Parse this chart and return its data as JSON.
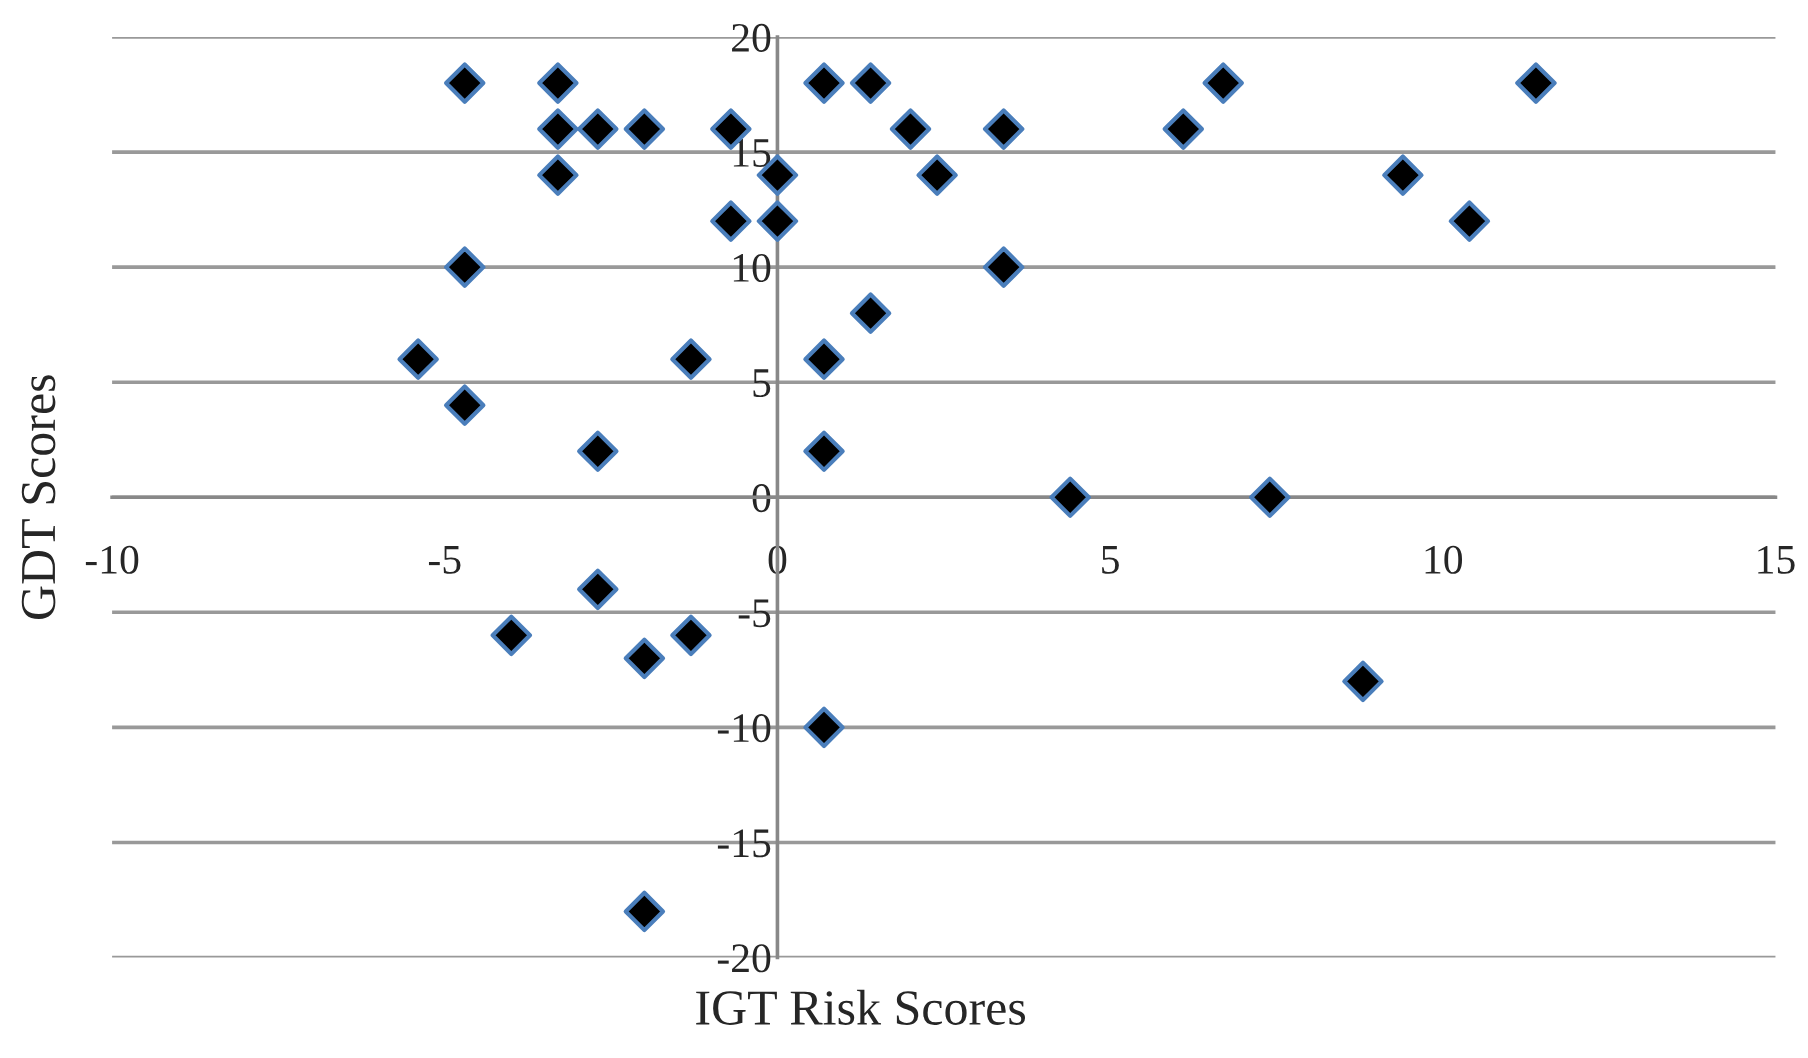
{
  "chart_data": {
    "type": "scatter",
    "xlabel": "IGT Risk Scores",
    "ylabel": "GDT Scores",
    "xlim": [
      -10,
      15
    ],
    "ylim": [
      -20,
      20
    ],
    "xticks": [
      -10,
      -5,
      0,
      5,
      10,
      15
    ],
    "yticks": [
      -20,
      -15,
      -10,
      -5,
      0,
      5,
      10,
      15,
      20
    ],
    "grid": "y",
    "marker": "diamond",
    "series": [
      {
        "color": "#000000",
        "x": [
          -4.7,
          -3.3,
          -3.3,
          -2.7,
          -2.0,
          -0.7,
          -3.3,
          0.0,
          -0.7,
          0.0,
          -4.7,
          3.4,
          -5.4,
          -1.3,
          0.7,
          1.4,
          -4.7,
          -2.7,
          0.7,
          0.7,
          1.4,
          2.0,
          2.4,
          3.4,
          6.7,
          6.1,
          11.4,
          9.4,
          10.4,
          4.4,
          7.4,
          8.8,
          -2.7,
          -4.0,
          -2.0,
          -1.3,
          0.7,
          -2.0
        ],
        "values": [
          18,
          18,
          16,
          16,
          16,
          16,
          14,
          14,
          12,
          12,
          10,
          10,
          6,
          6,
          6,
          8,
          4,
          2,
          2,
          18,
          18,
          16,
          14,
          16,
          18,
          16,
          18,
          14,
          12,
          0,
          0,
          -8,
          -4,
          -6,
          -7,
          -6,
          -10,
          -18
        ]
      }
    ]
  }
}
